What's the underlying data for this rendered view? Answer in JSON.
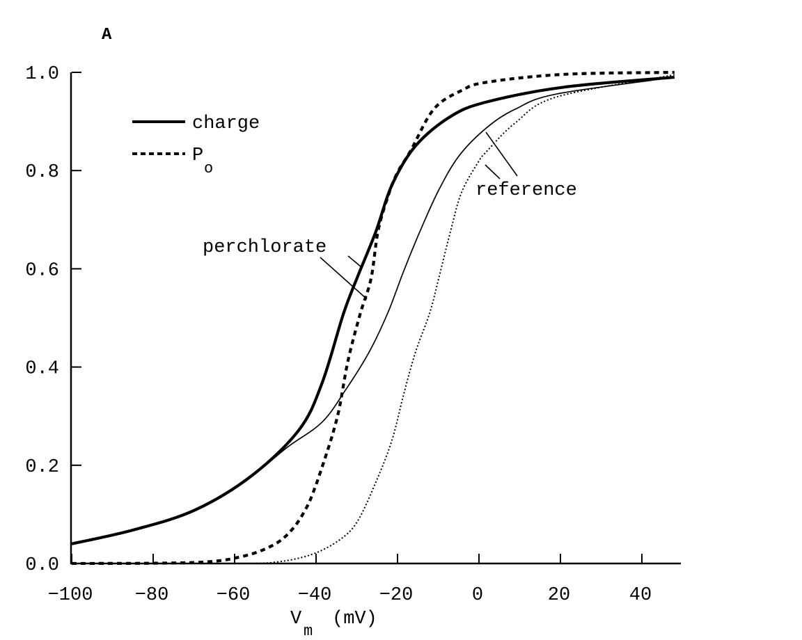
{
  "panel_label": "A",
  "chart_data": {
    "type": "line",
    "title": "",
    "xlabel": "V",
    "xlabel_sub": "m",
    "xlabel_unit": "(mV)",
    "ylabel": "",
    "xlim": [
      -100,
      50
    ],
    "ylim": [
      0,
      1
    ],
    "xticks": [
      -100,
      -80,
      -60,
      -40,
      -20,
      0,
      20,
      40
    ],
    "xtick_labels": [
      "−100",
      "−80",
      "−60",
      "−40",
      "−20",
      "0",
      "20",
      "40"
    ],
    "yticks": [
      0,
      0.2,
      0.4,
      0.6,
      0.8,
      1.0
    ],
    "ytick_labels": [
      "0.0",
      "0.2",
      "0.4",
      "0.6",
      "0.8",
      "1.0"
    ],
    "grid": false,
    "legend": {
      "placement": "top-left",
      "entries": [
        {
          "label": "charge",
          "style": "solid-thick"
        },
        {
          "label": "P",
          "label_sub": "o",
          "style": "dashed-thick"
        }
      ]
    },
    "annotations": [
      {
        "text": "perchlorate",
        "points_to": [
          "perchlorate charge",
          "perchlorate Po"
        ]
      },
      {
        "text": "reference",
        "points_to": [
          "reference charge",
          "reference Po"
        ]
      }
    ],
    "series": [
      {
        "condition": "perchlorate",
        "measure": "charge",
        "style": "solid-thick",
        "x": [
          -100,
          -85,
          -69.7,
          -55.6,
          -44.1,
          -38.5,
          -33.3,
          -29.9,
          -25.3,
          -21.4,
          -15.6,
          -7,
          2,
          21,
          48
        ],
        "y": [
          0.04,
          0.068,
          0.109,
          0.18,
          0.273,
          0.368,
          0.508,
          0.582,
          0.676,
          0.77,
          0.85,
          0.91,
          0.94,
          0.97,
          0.99
        ]
      },
      {
        "condition": "perchlorate",
        "measure": "Po",
        "style": "dashed-thick",
        "x": [
          -100,
          -70,
          -58.3,
          -50.4,
          -45.8,
          -42.4,
          -40.2,
          -37.3,
          -35.6,
          -34.2,
          -32.1,
          -29.1,
          -26.5,
          -24.8,
          -22.4,
          -20.2,
          -16.8,
          -11.1,
          -4.3,
          2,
          21,
          48
        ],
        "y": [
          0,
          0.002,
          0.014,
          0.038,
          0.07,
          0.113,
          0.156,
          0.227,
          0.273,
          0.32,
          0.415,
          0.51,
          0.58,
          0.676,
          0.746,
          0.793,
          0.84,
          0.925,
          0.963,
          0.98,
          0.996,
          1.0
        ]
      },
      {
        "condition": "reference",
        "measure": "charge",
        "style": "solid-thin",
        "x": [
          -100,
          -85,
          -69.7,
          -55.6,
          -47,
          -38.5,
          -32.7,
          -27,
          -22.4,
          -18.5,
          -14.5,
          -9.9,
          -4.8,
          2,
          8.9,
          19.1,
          48
        ],
        "y": [
          0.04,
          0.068,
          0.109,
          0.18,
          0.237,
          0.288,
          0.354,
          0.43,
          0.51,
          0.595,
          0.676,
          0.76,
          0.831,
          0.888,
          0.925,
          0.956,
          0.99
        ]
      },
      {
        "condition": "reference",
        "measure": "Po",
        "style": "dotted-thin",
        "x": [
          -100,
          -60,
          -49.7,
          -41.2,
          -34.4,
          -29.9,
          -25.3,
          -21.4,
          -18.5,
          -15.6,
          -12.1,
          -9.9,
          -7,
          -4.3,
          -0.2,
          2,
          8.9,
          19.1,
          48
        ],
        "y": [
          0,
          0,
          0.003,
          0.018,
          0.047,
          0.085,
          0.166,
          0.25,
          0.344,
          0.43,
          0.51,
          0.58,
          0.676,
          0.755,
          0.817,
          0.84,
          0.897,
          0.95,
          0.995
        ]
      }
    ]
  }
}
